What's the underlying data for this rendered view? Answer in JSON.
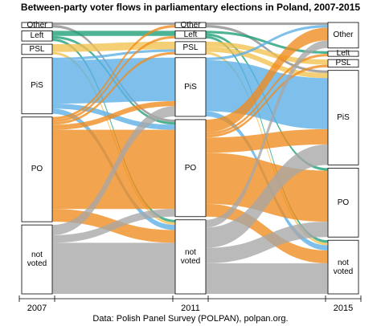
{
  "chart_data": {
    "type": "alluvial",
    "title": "Between-party voter flows in parliamentary elections in Poland, 2007-2015",
    "caption": "Data: Polish Panel Survey (POLPAN), polpan.org.",
    "axes": [
      "2007",
      "2011",
      "2015"
    ],
    "colors": [
      "#8c8c8c",
      "#1b9e77",
      "#f2c14e",
      "#5aaee6",
      "#f08a1c",
      "#a6a6a6"
    ],
    "nodes": [
      [
        {
          "label": "Other",
          "value": 2
        },
        {
          "label": "Left",
          "value": 4
        },
        {
          "label": "PSL",
          "value": 4
        },
        {
          "label": "PiS",
          "value": 22
        },
        {
          "label": "PO",
          "value": 41
        },
        {
          "label": "not voted",
          "value": 27
        }
      ],
      [
        {
          "label": "Other",
          "value": 2
        },
        {
          "label": "Left",
          "value": 3
        },
        {
          "label": "PSL",
          "value": 5
        },
        {
          "label": "PiS",
          "value": 23
        },
        {
          "label": "PO",
          "value": 38
        },
        {
          "label": "not voted",
          "value": 29
        }
      ],
      [
        {
          "label": "Other",
          "value": 10
        },
        {
          "label": "Left",
          "value": 2
        },
        {
          "label": "PSL",
          "value": 3
        },
        {
          "label": "PiS",
          "value": 37
        },
        {
          "label": "PO",
          "value": 27
        },
        {
          "label": "not voted",
          "value": 21
        }
      ]
    ],
    "flows": [
      {
        "stage": 0,
        "from": 0,
        "to": 0,
        "value": 1
      },
      {
        "stage": 0,
        "from": 0,
        "to": 4,
        "value": 1
      },
      {
        "stage": 0,
        "from": 1,
        "to": 1,
        "value": 2
      },
      {
        "stage": 0,
        "from": 1,
        "to": 4,
        "value": 1
      },
      {
        "stage": 0,
        "from": 1,
        "to": 5,
        "value": 1
      },
      {
        "stage": 0,
        "from": 2,
        "to": 2,
        "value": 3
      },
      {
        "stage": 0,
        "from": 2,
        "to": 5,
        "value": 1
      },
      {
        "stage": 0,
        "from": 3,
        "to": 2,
        "value": 1
      },
      {
        "stage": 0,
        "from": 3,
        "to": 3,
        "value": 17
      },
      {
        "stage": 0,
        "from": 3,
        "to": 4,
        "value": 2
      },
      {
        "stage": 0,
        "from": 3,
        "to": 5,
        "value": 2
      },
      {
        "stage": 0,
        "from": 4,
        "to": 0,
        "value": 1
      },
      {
        "stage": 0,
        "from": 4,
        "to": 1,
        "value": 1
      },
      {
        "stage": 0,
        "from": 4,
        "to": 2,
        "value": 1
      },
      {
        "stage": 0,
        "from": 4,
        "to": 3,
        "value": 2
      },
      {
        "stage": 0,
        "from": 4,
        "to": 4,
        "value": 31
      },
      {
        "stage": 0,
        "from": 4,
        "to": 5,
        "value": 5
      },
      {
        "stage": 0,
        "from": 5,
        "to": 3,
        "value": 4
      },
      {
        "stage": 0,
        "from": 5,
        "to": 4,
        "value": 3
      },
      {
        "stage": 0,
        "from": 5,
        "to": 5,
        "value": 20
      },
      {
        "stage": 1,
        "from": 0,
        "to": 0,
        "value": 1
      },
      {
        "stage": 1,
        "from": 0,
        "to": 3,
        "value": 1
      },
      {
        "stage": 1,
        "from": 1,
        "to": 1,
        "value": 1
      },
      {
        "stage": 1,
        "from": 1,
        "to": 4,
        "value": 1
      },
      {
        "stage": 1,
        "from": 1,
        "to": 5,
        "value": 1
      },
      {
        "stage": 1,
        "from": 2,
        "to": 2,
        "value": 2
      },
      {
        "stage": 1,
        "from": 2,
        "to": 3,
        "value": 2
      },
      {
        "stage": 1,
        "from": 2,
        "to": 5,
        "value": 1
      },
      {
        "stage": 1,
        "from": 3,
        "to": 0,
        "value": 1
      },
      {
        "stage": 1,
        "from": 3,
        "to": 3,
        "value": 20
      },
      {
        "stage": 1,
        "from": 3,
        "to": 5,
        "value": 2
      },
      {
        "stage": 1,
        "from": 4,
        "to": 0,
        "value": 5
      },
      {
        "stage": 1,
        "from": 4,
        "to": 1,
        "value": 1
      },
      {
        "stage": 1,
        "from": 4,
        "to": 2,
        "value": 1
      },
      {
        "stage": 1,
        "from": 4,
        "to": 3,
        "value": 6
      },
      {
        "stage": 1,
        "from": 4,
        "to": 4,
        "value": 20
      },
      {
        "stage": 1,
        "from": 4,
        "to": 5,
        "value": 5
      },
      {
        "stage": 1,
        "from": 5,
        "to": 0,
        "value": 3
      },
      {
        "stage": 1,
        "from": 5,
        "to": 3,
        "value": 8
      },
      {
        "stage": 1,
        "from": 5,
        "to": 4,
        "value": 6
      },
      {
        "stage": 1,
        "from": 5,
        "to": 5,
        "value": 12
      }
    ]
  }
}
